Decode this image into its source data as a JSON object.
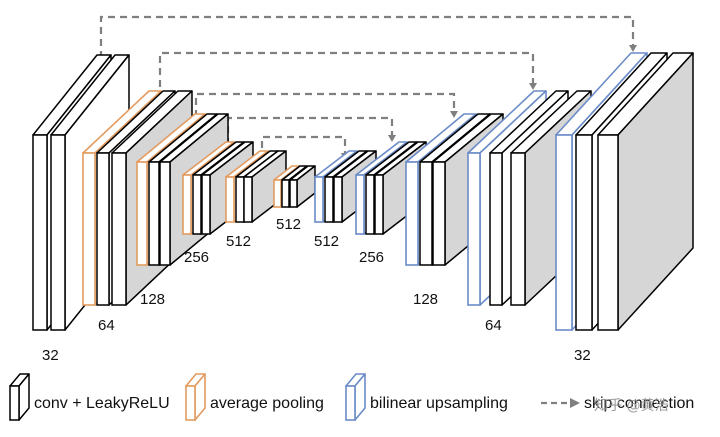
{
  "diagram": {
    "colors": {
      "conv": "#000000",
      "pool": "#e39b5f",
      "upsample": "#6b8cc8",
      "skip": "#7f7f7f",
      "face": "#ffffff",
      "side_fill": "#d6d6d6"
    },
    "encoder_labels": [
      "32",
      "64",
      "128",
      "256",
      "512",
      "512"
    ],
    "decoder_labels": [
      "512",
      "256",
      "128",
      "64",
      "32"
    ],
    "legend": {
      "conv": "conv + LeakyReLU",
      "pool": "average pooling",
      "upsample": "bilinear upsampling",
      "skip": "skip connection"
    },
    "watermark": "知乎 @黄浩"
  }
}
